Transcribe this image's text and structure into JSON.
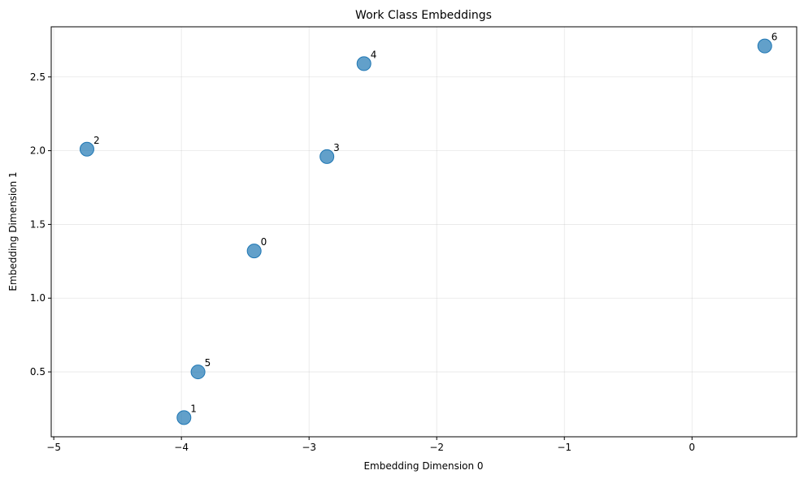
{
  "chart_data": {
    "type": "scatter",
    "title": "Work Class Embeddings",
    "xlabel": "Embedding Dimension 0",
    "ylabel": "Embedding Dimension 1",
    "xlim": [
      -5.02,
      0.82
    ],
    "ylim": [
      0.06,
      2.84
    ],
    "xticks": [
      -5,
      -4,
      -3,
      -2,
      -1,
      0
    ],
    "yticks": [
      0.5,
      1.0,
      1.5,
      2.0,
      2.5
    ],
    "xtick_labels": [
      "−5",
      "−4",
      "−3",
      "−2",
      "−1",
      "0"
    ],
    "ytick_labels": [
      "0.5",
      "1.0",
      "1.5",
      "2.0",
      "2.5"
    ],
    "grid": true,
    "marker_color": "#1f77b4",
    "points": [
      {
        "label": "0",
        "x": -3.43,
        "y": 1.32
      },
      {
        "label": "1",
        "x": -3.98,
        "y": 0.19
      },
      {
        "label": "2",
        "x": -4.74,
        "y": 2.01
      },
      {
        "label": "3",
        "x": -2.86,
        "y": 1.96
      },
      {
        "label": "4",
        "x": -2.57,
        "y": 2.59
      },
      {
        "label": "5",
        "x": -3.87,
        "y": 0.5
      },
      {
        "label": "6",
        "x": 0.57,
        "y": 2.71
      }
    ]
  }
}
